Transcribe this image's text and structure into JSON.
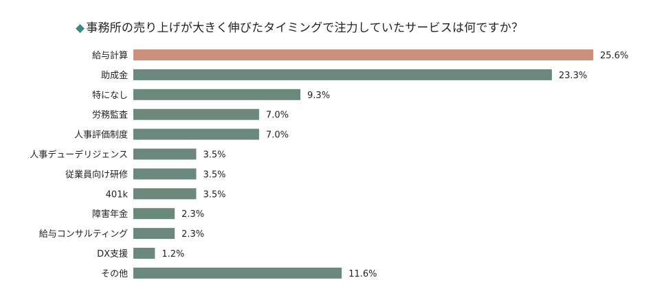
{
  "chart_data": {
    "type": "bar",
    "orientation": "horizontal",
    "title": "事務所の売り上げが大きく伸びたタイミングで注力していたサービスは何ですか？",
    "title_marker": "◆",
    "categories": [
      "給与計算",
      "助成金",
      "特になし",
      "労務監査",
      "人事評価制度",
      "人事デューデリジェンス",
      "従業員向け研修",
      "401k",
      "障害年金",
      "給与コンサルティング",
      "DX支援",
      "その他"
    ],
    "values": [
      25.6,
      23.3,
      9.3,
      7.0,
      7.0,
      3.5,
      3.5,
      3.5,
      2.3,
      2.3,
      1.2,
      11.6
    ],
    "value_labels": [
      "25.6%",
      "23.3%",
      "9.3%",
      "7.0%",
      "7.0%",
      "3.5%",
      "3.5%",
      "3.5%",
      "2.3%",
      "2.3%",
      "1.2%",
      "11.6%"
    ],
    "unit": "%",
    "xlim": [
      0,
      25.6
    ],
    "grid": false,
    "colors": {
      "highlight": "#cc8f7c",
      "default": "#6b887d",
      "title_marker": "#3a8a86"
    },
    "highlight_index": 0
  }
}
